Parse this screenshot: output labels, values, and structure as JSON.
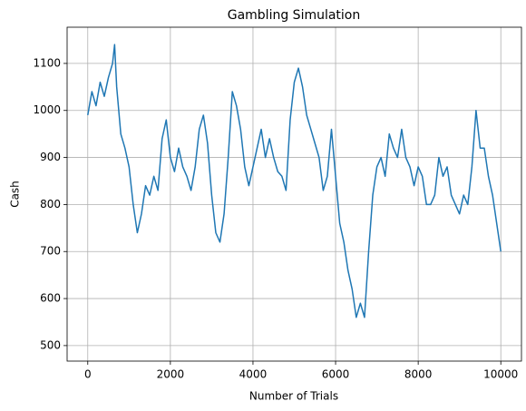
{
  "chart_data": {
    "type": "line",
    "title": "Gambling Simulation",
    "x_label": "Number of Trials",
    "y_label": "Cash",
    "x": [
      0,
      100,
      200,
      300,
      400,
      500,
      600,
      650,
      700,
      800,
      900,
      1000,
      1100,
      1200,
      1300,
      1400,
      1500,
      1600,
      1700,
      1800,
      1900,
      2000,
      2100,
      2200,
      2300,
      2400,
      2500,
      2600,
      2700,
      2800,
      2900,
      3000,
      3100,
      3200,
      3300,
      3400,
      3500,
      3600,
      3700,
      3800,
      3900,
      4000,
      4100,
      4200,
      4300,
      4400,
      4500,
      4600,
      4700,
      4800,
      4900,
      5000,
      5100,
      5200,
      5300,
      5400,
      5500,
      5600,
      5700,
      5800,
      5900,
      6000,
      6100,
      6200,
      6300,
      6400,
      6500,
      6600,
      6700,
      6800,
      6900,
      7000,
      7100,
      7200,
      7300,
      7400,
      7500,
      7600,
      7700,
      7800,
      7900,
      8000,
      8100,
      8200,
      8300,
      8400,
      8500,
      8600,
      8700,
      8800,
      8900,
      9000,
      9100,
      9200,
      9300,
      9400,
      9500,
      9600,
      9700,
      9800,
      9900,
      10000
    ],
    "series": [
      {
        "name": "Cash",
        "color": "#1f77b4",
        "values": [
          990,
          1040,
          1010,
          1060,
          1030,
          1070,
          1100,
          1140,
          1050,
          950,
          920,
          880,
          800,
          740,
          780,
          840,
          820,
          860,
          830,
          940,
          980,
          900,
          870,
          920,
          880,
          860,
          830,
          880,
          960,
          990,
          930,
          820,
          740,
          720,
          780,
          900,
          1040,
          1010,
          960,
          880,
          840,
          880,
          920,
          960,
          900,
          940,
          900,
          870,
          860,
          830,
          980,
          1060,
          1090,
          1050,
          990,
          960,
          930,
          900,
          830,
          860,
          960,
          860,
          760,
          720,
          660,
          620,
          560,
          590,
          560,
          700,
          820,
          880,
          900,
          860,
          950,
          920,
          900,
          960,
          900,
          880,
          840,
          880,
          860,
          800,
          800,
          820,
          900,
          860,
          880,
          820,
          800,
          780,
          820,
          800,
          880,
          1000,
          920,
          920,
          860,
          820,
          760,
          700
        ]
      }
    ],
    "xlim": [
      -500,
      10500
    ],
    "ylim": [
      467,
      1177
    ],
    "xticks": [
      0,
      2000,
      4000,
      6000,
      8000,
      10000
    ],
    "yticks": [
      500,
      600,
      700,
      800,
      900,
      1000,
      1100
    ],
    "grid": true
  }
}
